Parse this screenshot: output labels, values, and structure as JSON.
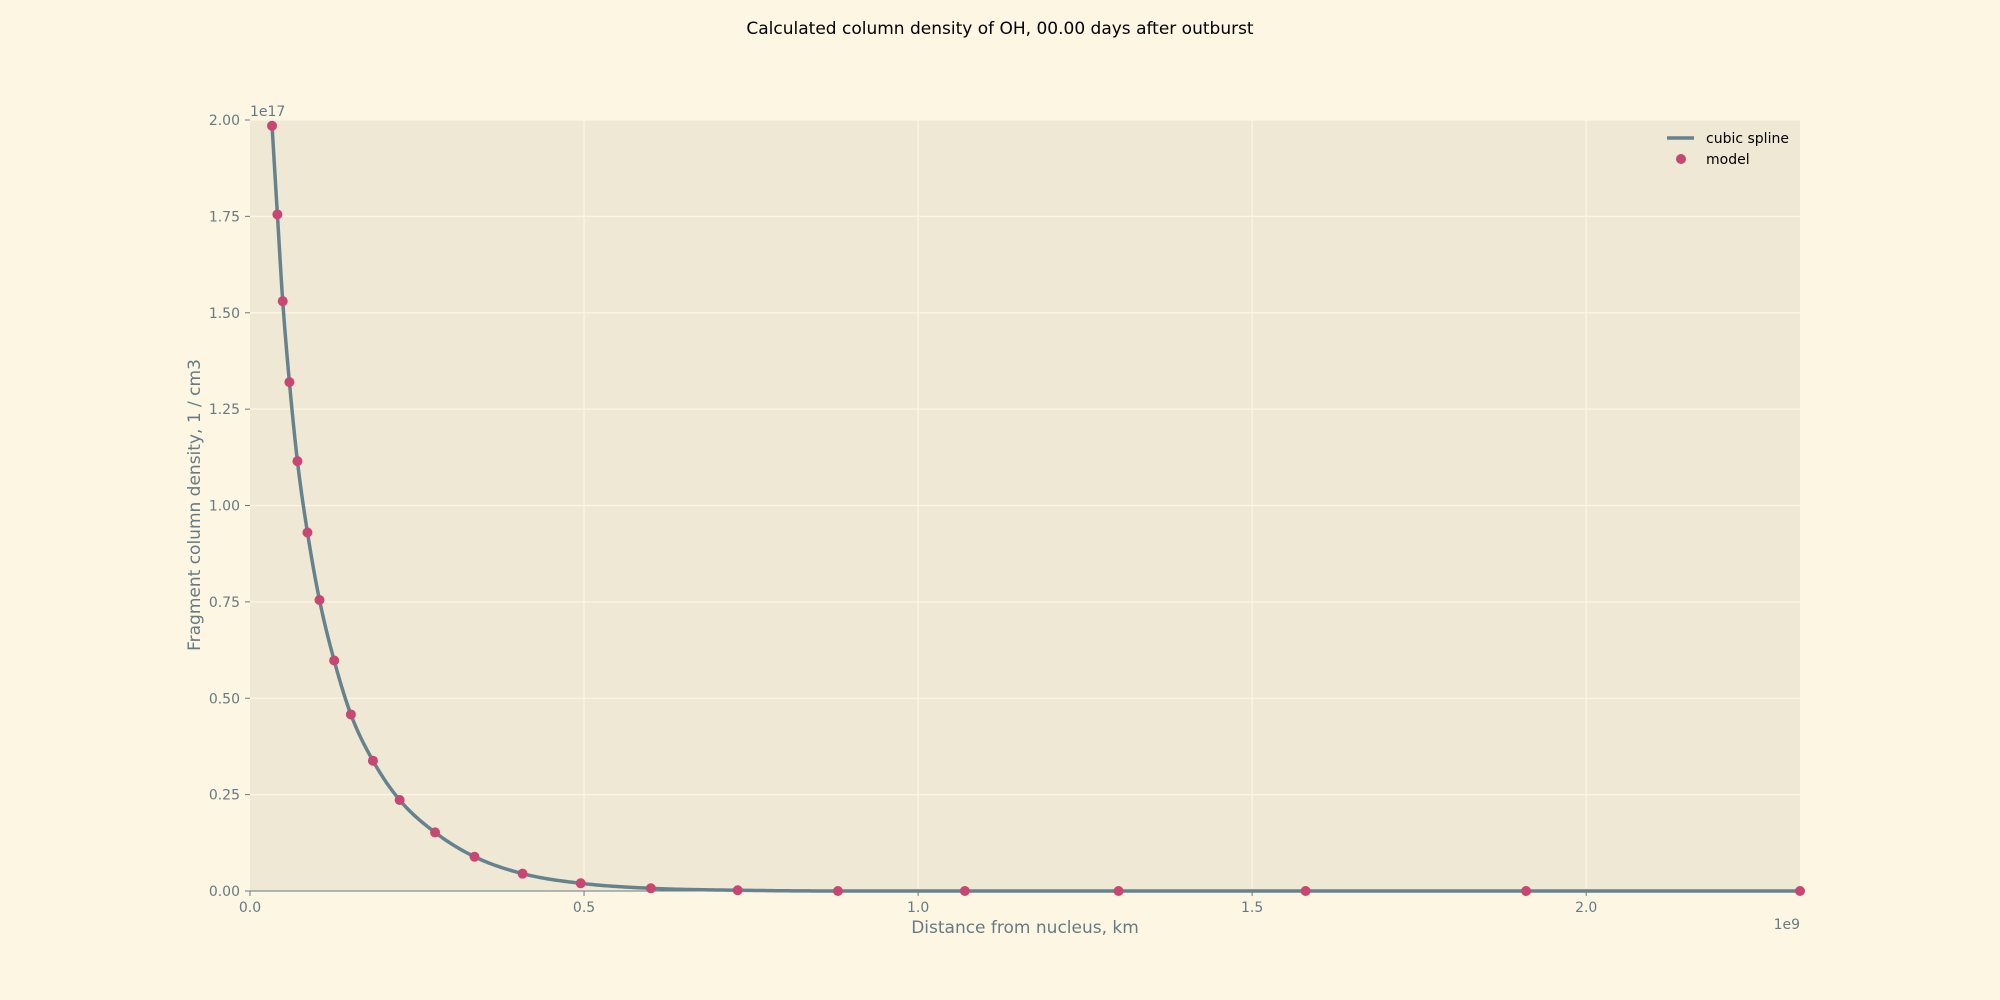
{
  "chart_data": {
    "type": "line",
    "title": "Calculated column density of OH, 00.00 days after outburst",
    "xlabel": "Distance from nucleus, km",
    "ylabel": "Fragment column density, 1 / cm3",
    "x_multiplier": "1e9",
    "y_multiplier": "1e17",
    "xlim": [
      0,
      2.32
    ],
    "ylim": [
      0,
      2.0
    ],
    "xticks": [
      0.0,
      0.5,
      1.0,
      1.5,
      2.0
    ],
    "xtick_labels": [
      "0.0",
      "0.5",
      "1.0",
      "1.5",
      "2.0"
    ],
    "yticks": [
      0.0,
      0.25,
      0.5,
      0.75,
      1.0,
      1.25,
      1.5,
      1.75,
      2.0
    ],
    "ytick_labels": [
      "0.00",
      "0.25",
      "0.50",
      "0.75",
      "1.00",
      "1.25",
      "1.50",
      "1.75",
      "2.00"
    ],
    "grid": true,
    "legend_position": "top-right",
    "colors": {
      "figure_background": "#fdf6e3",
      "axes_background": "#eee8d5",
      "grid": "#fdf6e3",
      "text": "#657b83",
      "title": "#000000",
      "spline": "#66838d",
      "model": "#c84772"
    },
    "series": [
      {
        "name": "cubic spline",
        "kind": "line",
        "x": [
          0.033,
          0.041,
          0.049,
          0.059,
          0.071,
          0.086,
          0.104,
          0.126,
          0.151,
          0.184,
          0.224,
          0.277,
          0.336,
          0.408,
          0.495,
          0.6,
          0.73,
          0.88,
          1.07,
          1.3,
          1.58,
          1.91,
          2.32
        ],
        "y": [
          1.985,
          1.755,
          1.53,
          1.32,
          1.115,
          0.93,
          0.755,
          0.598,
          0.458,
          0.338,
          0.236,
          0.152,
          0.089,
          0.045,
          0.02,
          0.007,
          0.002,
          0.0,
          0.0,
          0.0,
          0.0,
          0.0,
          0.0
        ]
      },
      {
        "name": "model",
        "kind": "scatter",
        "x": [
          0.033,
          0.041,
          0.049,
          0.059,
          0.071,
          0.086,
          0.104,
          0.126,
          0.151,
          0.184,
          0.224,
          0.277,
          0.336,
          0.408,
          0.495,
          0.6,
          0.73,
          0.88,
          1.07,
          1.3,
          1.58,
          1.91,
          2.32
        ],
        "y": [
          1.985,
          1.755,
          1.53,
          1.32,
          1.115,
          0.93,
          0.755,
          0.598,
          0.458,
          0.338,
          0.236,
          0.152,
          0.089,
          0.045,
          0.02,
          0.007,
          0.002,
          0.0,
          0.0,
          0.0,
          0.0,
          0.0,
          0.0
        ]
      }
    ]
  }
}
